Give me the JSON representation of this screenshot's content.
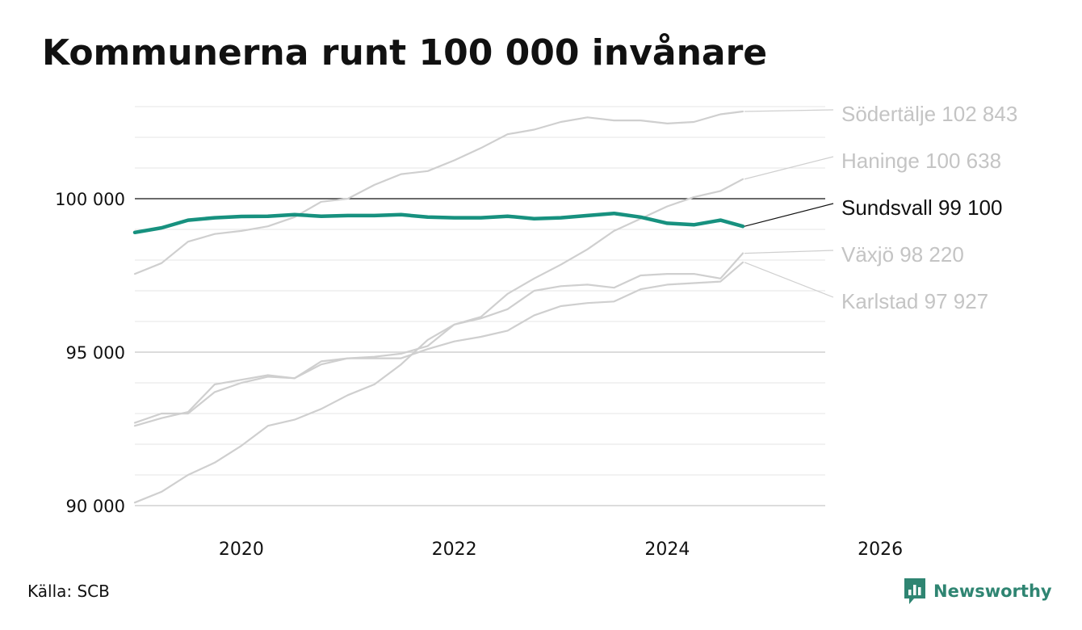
{
  "title": "Kommunerna runt 100 000 invånare",
  "source": "Källa: SCB",
  "brand": {
    "name": "Newsworthy",
    "icon": "chart-bubble-icon",
    "color": "#2f8572"
  },
  "colors": {
    "highlight": "#17917f",
    "other": "#cfcfcf",
    "reference": "#111111",
    "grid": "#e6e6e6",
    "label_muted": "#c4c4c4",
    "label_dark": "#111111"
  },
  "chart_data": {
    "type": "line",
    "title": "Kommunerna runt 100 000 invånare",
    "xlabel": "",
    "ylabel": "",
    "xlim": [
      2019.0,
      2027.0
    ],
    "ylim": [
      89500,
      103500
    ],
    "x_ticks": [
      2020,
      2022,
      2024,
      2026
    ],
    "x_tick_labels": [
      "2020",
      "2022",
      "2024",
      "2026"
    ],
    "y_ticks": [
      90000,
      95000,
      100000
    ],
    "y_tick_labels": [
      "90 000",
      "95 000",
      "100 000"
    ],
    "reference_line": 100000,
    "grid": true,
    "series": [
      {
        "name": "Södertälje",
        "end_label": "Södertälje 102 843",
        "highlight": false,
        "points": [
          [
            2019.0,
            97550
          ],
          [
            2019.25,
            97900
          ],
          [
            2019.5,
            98600
          ],
          [
            2019.75,
            98850
          ],
          [
            2020.0,
            98950
          ],
          [
            2020.25,
            99100
          ],
          [
            2020.5,
            99400
          ],
          [
            2020.75,
            99900
          ],
          [
            2021.0,
            100000
          ],
          [
            2021.25,
            100450
          ],
          [
            2021.5,
            100800
          ],
          [
            2021.75,
            100900
          ],
          [
            2022.0,
            101250
          ],
          [
            2022.25,
            101650
          ],
          [
            2022.5,
            102100
          ],
          [
            2022.75,
            102250
          ],
          [
            2023.0,
            102500
          ],
          [
            2023.25,
            102650
          ],
          [
            2023.5,
            102550
          ],
          [
            2023.75,
            102550
          ],
          [
            2024.0,
            102450
          ],
          [
            2024.25,
            102500
          ],
          [
            2024.5,
            102750
          ],
          [
            2024.71,
            102843
          ]
        ]
      },
      {
        "name": "Haninge",
        "end_label": "Haninge 100 638",
        "highlight": false,
        "points": [
          [
            2019.0,
            90100
          ],
          [
            2019.25,
            90450
          ],
          [
            2019.5,
            91000
          ],
          [
            2019.75,
            91400
          ],
          [
            2020.0,
            91950
          ],
          [
            2020.25,
            92600
          ],
          [
            2020.5,
            92800
          ],
          [
            2020.75,
            93150
          ],
          [
            2021.0,
            93600
          ],
          [
            2021.25,
            93950
          ],
          [
            2021.5,
            94600
          ],
          [
            2021.75,
            95400
          ],
          [
            2022.0,
            95900
          ],
          [
            2022.25,
            96150
          ],
          [
            2022.5,
            96900
          ],
          [
            2022.75,
            97400
          ],
          [
            2023.0,
            97850
          ],
          [
            2023.25,
            98350
          ],
          [
            2023.5,
            98950
          ],
          [
            2023.75,
            99350
          ],
          [
            2024.0,
            99750
          ],
          [
            2024.25,
            100050
          ],
          [
            2024.5,
            100250
          ],
          [
            2024.71,
            100638
          ]
        ]
      },
      {
        "name": "Växjö",
        "end_label": "Växjö  98 220",
        "highlight": false,
        "points": [
          [
            2019.0,
            92700
          ],
          [
            2019.25,
            93000
          ],
          [
            2019.5,
            93000
          ],
          [
            2019.75,
            93700
          ],
          [
            2020.0,
            94000
          ],
          [
            2020.25,
            94200
          ],
          [
            2020.5,
            94150
          ],
          [
            2020.75,
            94700
          ],
          [
            2021.0,
            94800
          ],
          [
            2021.25,
            94850
          ],
          [
            2021.5,
            94950
          ],
          [
            2021.75,
            95200
          ],
          [
            2022.0,
            95900
          ],
          [
            2022.25,
            96100
          ],
          [
            2022.5,
            96400
          ],
          [
            2022.75,
            97000
          ],
          [
            2023.0,
            97150
          ],
          [
            2023.25,
            97200
          ],
          [
            2023.5,
            97100
          ],
          [
            2023.75,
            97500
          ],
          [
            2024.0,
            97550
          ],
          [
            2024.25,
            97550
          ],
          [
            2024.5,
            97400
          ],
          [
            2024.71,
            98220
          ]
        ]
      },
      {
        "name": "Karlstad",
        "end_label": "Karlstad  97 927",
        "highlight": false,
        "points": [
          [
            2019.0,
            92600
          ],
          [
            2019.25,
            92850
          ],
          [
            2019.5,
            93050
          ],
          [
            2019.75,
            93950
          ],
          [
            2020.0,
            94100
          ],
          [
            2020.25,
            94250
          ],
          [
            2020.5,
            94150
          ],
          [
            2020.75,
            94600
          ],
          [
            2021.0,
            94800
          ],
          [
            2021.25,
            94800
          ],
          [
            2021.5,
            94800
          ],
          [
            2021.75,
            95100
          ],
          [
            2022.0,
            95350
          ],
          [
            2022.25,
            95500
          ],
          [
            2022.5,
            95700
          ],
          [
            2022.75,
            96200
          ],
          [
            2023.0,
            96500
          ],
          [
            2023.25,
            96600
          ],
          [
            2023.5,
            96650
          ],
          [
            2023.75,
            97050
          ],
          [
            2024.0,
            97200
          ],
          [
            2024.25,
            97250
          ],
          [
            2024.5,
            97300
          ],
          [
            2024.71,
            97927
          ]
        ]
      },
      {
        "name": "Sundsvall",
        "end_label": "Sundsvall  99 100",
        "highlight": true,
        "points": [
          [
            2019.0,
            98900
          ],
          [
            2019.25,
            99050
          ],
          [
            2019.5,
            99300
          ],
          [
            2019.75,
            99380
          ],
          [
            2020.0,
            99420
          ],
          [
            2020.25,
            99430
          ],
          [
            2020.5,
            99480
          ],
          [
            2020.75,
            99430
          ],
          [
            2021.0,
            99450
          ],
          [
            2021.25,
            99450
          ],
          [
            2021.5,
            99480
          ],
          [
            2021.75,
            99400
          ],
          [
            2022.0,
            99380
          ],
          [
            2022.25,
            99380
          ],
          [
            2022.5,
            99430
          ],
          [
            2022.75,
            99350
          ],
          [
            2023.0,
            99380
          ],
          [
            2023.25,
            99450
          ],
          [
            2023.5,
            99520
          ],
          [
            2023.75,
            99400
          ],
          [
            2024.0,
            99200
          ],
          [
            2024.25,
            99150
          ],
          [
            2024.5,
            99300
          ],
          [
            2024.71,
            99100
          ]
        ]
      }
    ]
  }
}
